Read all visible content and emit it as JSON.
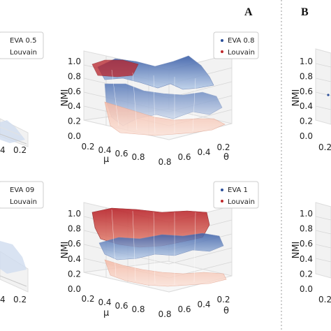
{
  "panel_labels": [
    "A",
    "B"
  ],
  "colors": {
    "eva": "#2b4f9a",
    "louvain": "#c0282b",
    "grid": "#d8d8d8",
    "pane": "#f2f2f2"
  },
  "chart_data": [
    {
      "type": "surface3d",
      "position": "top-left (cropped)",
      "legend": [
        "EVA 0.5",
        "Louvain"
      ],
      "legend_placement": "top-right",
      "visible_x_ticks": [
        "4",
        "0.2"
      ],
      "zlim": [
        0,
        1
      ]
    },
    {
      "type": "surface3d",
      "position": "top-middle",
      "xlabel": "μ",
      "ylabel": "θ",
      "zlabel": "NMI",
      "x_ticks": [
        "0.2",
        "0.4",
        "0.6",
        "0.8"
      ],
      "y_ticks": [
        "0.8",
        "0.6",
        "0.4",
        "0.2"
      ],
      "z_ticks": [
        "0.0",
        "0.2",
        "0.4",
        "0.6",
        "0.8",
        "1.0"
      ],
      "zlim": [
        0,
        1
      ],
      "grid": true,
      "legend": [
        "EVA 0.8",
        "Louvain"
      ],
      "legend_placement": "top-right",
      "series": [
        {
          "name": "EVA 0.8",
          "color": "#2b4f9a",
          "mu": [
            0.1,
            0.3,
            0.5,
            0.7,
            0.9
          ],
          "nmi_high_theta": [
            1.0,
            0.95,
            0.75,
            0.05,
            0.0
          ],
          "nmi_low_theta": [
            0.85,
            0.7,
            0.45,
            0.05,
            0.0
          ]
        },
        {
          "name": "Louvain",
          "color": "#c0282b",
          "mu": [
            0.1,
            0.3,
            0.5,
            0.7,
            0.9
          ],
          "nmi": [
            1.0,
            0.98,
            0.6,
            0.25,
            0.15
          ]
        }
      ]
    },
    {
      "type": "surface3d",
      "position": "bottom-left (cropped)",
      "legend": [
        "EVA 09",
        "Louvain"
      ],
      "legend_placement": "top-right",
      "visible_x_ticks": [
        "4",
        "0.2"
      ],
      "zlim": [
        0,
        1
      ]
    },
    {
      "type": "surface3d",
      "position": "bottom-middle",
      "xlabel": "μ",
      "ylabel": "θ",
      "zlabel": "NMI",
      "x_ticks": [
        "0.2",
        "0.4",
        "0.6",
        "0.8"
      ],
      "y_ticks": [
        "0.8",
        "0.6",
        "0.4",
        "0.2"
      ],
      "z_ticks": [
        "0.0",
        "0.2",
        "0.4",
        "0.6",
        "0.8",
        "1.0"
      ],
      "zlim": [
        0,
        1
      ],
      "grid": true,
      "legend": [
        "EVA 1",
        "Louvain"
      ],
      "legend_placement": "top-right",
      "series": [
        {
          "name": "EVA 1",
          "color": "#2b4f9a",
          "mu": [
            0.1,
            0.3,
            0.5,
            0.7,
            0.9
          ],
          "nmi": [
            0.65,
            0.6,
            0.55,
            0.45,
            0.4
          ]
        },
        {
          "name": "Louvain",
          "color": "#c0282b",
          "mu": [
            0.1,
            0.3,
            0.5,
            0.7,
            0.9
          ],
          "nmi": [
            1.0,
            1.0,
            0.95,
            0.2,
            0.05
          ]
        }
      ]
    },
    {
      "type": "surface3d",
      "position": "top-right (cropped)",
      "zlabel": "NMI",
      "z_ticks": [
        "0.0",
        "0.2",
        "0.4",
        "0.6",
        "0.8",
        "1.0"
      ],
      "visible_x_ticks": [
        "0.2"
      ]
    },
    {
      "type": "surface3d",
      "position": "bottom-right (cropped)",
      "zlabel": "NMI",
      "z_ticks": [
        "0.0",
        "0.2",
        "0.4",
        "0.6",
        "0.8",
        "1.0"
      ],
      "visible_x_ticks": [
        "0.2"
      ]
    }
  ]
}
